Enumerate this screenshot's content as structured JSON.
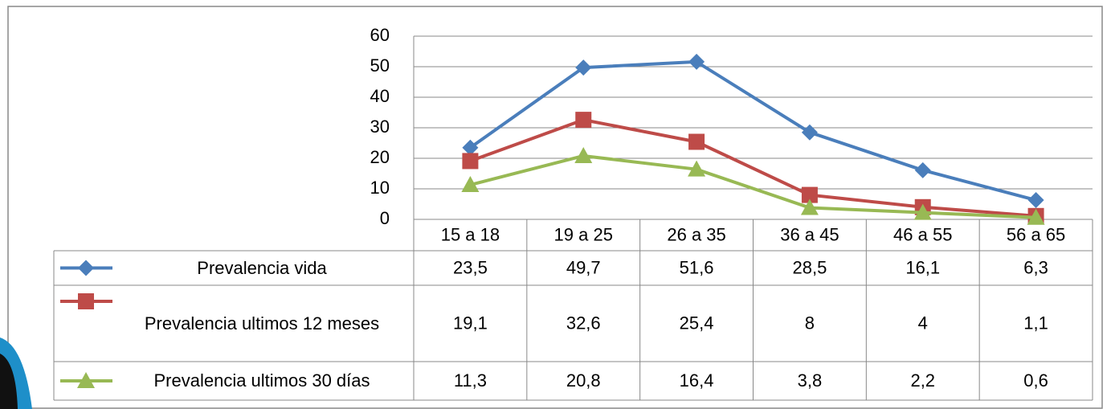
{
  "chart_data": {
    "type": "line",
    "categories": [
      "15 a 18",
      "19 a 25",
      "26 a 35",
      "36 a 45",
      "46 a 55",
      "56 a 65"
    ],
    "series": [
      {
        "name": "Prevalencia vida",
        "color": "#4a7ebb",
        "marker": "diamond",
        "values": [
          23.5,
          49.7,
          51.6,
          28.5,
          16.1,
          6.3
        ],
        "value_labels": [
          "23,5",
          "49,7",
          "51,6",
          "28,5",
          "16,1",
          "6,3"
        ]
      },
      {
        "name": "Prevalencia ultimos 12 meses",
        "color": "#be4b48",
        "marker": "square",
        "values": [
          19.1,
          32.6,
          25.4,
          8,
          4,
          1.1
        ],
        "value_labels": [
          "19,1",
          "32,6",
          "25,4",
          "8",
          "4",
          "1,1"
        ]
      },
      {
        "name": "Prevalencia ultimos 30 días",
        "color": "#98b954",
        "marker": "triangle",
        "values": [
          11.3,
          20.8,
          16.4,
          3.8,
          2.2,
          0.6
        ],
        "value_labels": [
          "11,3",
          "20,8",
          "16,4",
          "3,8",
          "2,2",
          "0,6"
        ]
      }
    ],
    "ylim": [
      0,
      60
    ],
    "yticks": [
      0,
      10,
      20,
      30,
      40,
      50,
      60
    ],
    "grid": true
  }
}
